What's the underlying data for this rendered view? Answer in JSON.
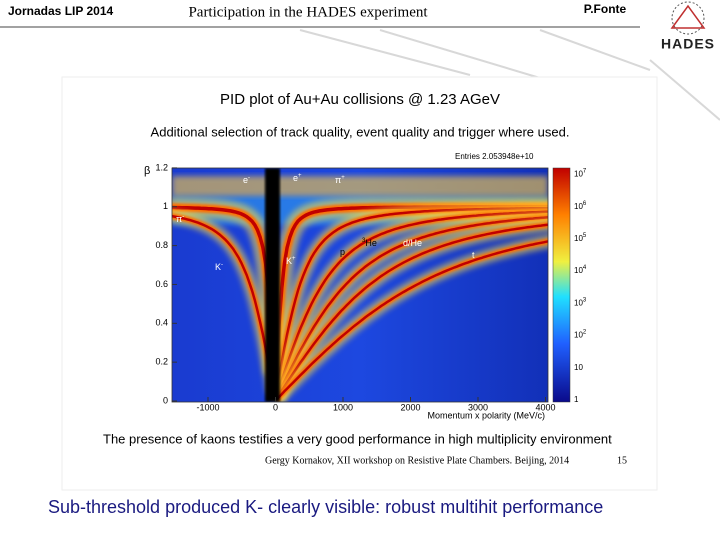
{
  "header": {
    "left": "Jornadas LIP 2014",
    "title": "Participation in the HADES experiment",
    "author": "P.Fonte",
    "logo": "HADES"
  },
  "slide": {
    "plot_title": "PID plot of Au+Au collisions @ 1.23 AGeV",
    "plot_subtitle": "Additional selection of track quality, event quality and trigger where used.",
    "entries": "Entries  2.053948e+10",
    "y_axis_label": "β",
    "y_ticks": [
      "0",
      "0.2",
      "0.4",
      "0.6",
      "0.8",
      "1",
      "1.2"
    ],
    "x_ticks": [
      "-1000",
      "0",
      "1000",
      "2000",
      "3000",
      "4000"
    ],
    "x_axis_label": "Momentum x polarity (MeV/c)",
    "colorbar": [
      {
        "base": "1"
      },
      {
        "base": "10"
      },
      {
        "base": "10",
        "exp": "2"
      },
      {
        "base": "10",
        "exp": "3"
      },
      {
        "base": "10",
        "exp": "4"
      },
      {
        "base": "10",
        "exp": "5"
      },
      {
        "base": "10",
        "exp": "6"
      },
      {
        "base": "10",
        "exp": "7"
      }
    ],
    "particles": [
      {
        "base": "e",
        "sup": "-"
      },
      {
        "base": "e",
        "sup": "+"
      },
      {
        "base": "π",
        "sup": "+"
      },
      {
        "base": "π",
        "sup": "-"
      },
      {
        "base": "K",
        "sup": "-"
      },
      {
        "base": "K",
        "sup": "+"
      },
      {
        "base": "p"
      },
      {
        "pre": "3",
        "base": "He"
      },
      {
        "base": "d/He"
      },
      {
        "base": "t"
      }
    ],
    "statement": "The presence of kaons testifies a very good performance in high multiplicity environment",
    "reference": "Gergy Kornakov, XII workshop on Resistive Plate Chambers. Beijing, 2014",
    "page": "15"
  },
  "caption": "Sub-threshold produced K- clearly visible: robust multihit performance"
}
